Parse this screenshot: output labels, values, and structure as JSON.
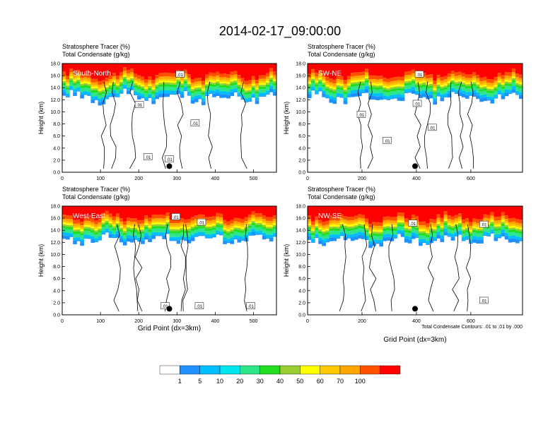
{
  "title": "2014-02-17_09:00:00",
  "footer_note": "Total Condensate Contours: .01 to .01 by .000",
  "colorbar": {
    "colors": [
      "#ffffff",
      "#1e90ff",
      "#00bfff",
      "#00e5ee",
      "#2ee68a",
      "#22dd22",
      "#9acd32",
      "#ffff00",
      "#ffc800",
      "#ffa500",
      "#ff5000",
      "#ff0000"
    ],
    "labels": [
      "1",
      "5",
      "10",
      "20",
      "30",
      "40",
      "50",
      "60",
      "70",
      "100"
    ]
  },
  "chart_data": [
    {
      "type": "heatmap",
      "label": "South-North",
      "subtitle_left": "Stratosphere Tracer",
      "subtitle_left_unit": "(%)",
      "subtitle_left2": "Total Condensate",
      "subtitle_left2_unit": "(g/kg)",
      "xlabel": "",
      "ylabel": "Height (km)",
      "xlim": [
        0,
        560
      ],
      "ylim": [
        0,
        18
      ],
      "xticks": [
        "0",
        "100",
        "200",
        "300",
        "400",
        "500"
      ],
      "yticks": [
        "0.0",
        "2.0",
        "4.0",
        "6.0",
        "8.0",
        "10.0",
        "12.0",
        "14.0",
        "16.0",
        "18.0"
      ],
      "contour_labels": [
        ".01",
        ".01",
        ".01",
        ".01",
        ".01"
      ],
      "marker_x": 280
    },
    {
      "type": "heatmap",
      "label": "SW-NE",
      "subtitle_left": "Stratosphere Tracer",
      "subtitle_left_unit": "(%)",
      "subtitle_left2": "Total Condensate",
      "subtitle_left2_unit": "(g/kg)",
      "xlabel": "",
      "ylabel": "Height (km)",
      "xlim": [
        0,
        790
      ],
      "ylim": [
        0,
        18
      ],
      "xticks": [
        "0",
        "200",
        "400",
        "600"
      ],
      "yticks": [
        "0.0",
        "2.0",
        "4.0",
        "6.0",
        "8.0",
        "10.0",
        "12.0",
        "14.0",
        "16.0",
        "18.0"
      ],
      "contour_labels": [
        ".01",
        ".01",
        ".01",
        ".01",
        ".01"
      ],
      "marker_x": 395
    },
    {
      "type": "heatmap",
      "label": "West-East",
      "subtitle_left": "Stratosphere Tracer",
      "subtitle_left_unit": "(%)",
      "subtitle_left2": "Total Condensate",
      "subtitle_left2_unit": "(g/kg)",
      "xlabel": "Grid Point (dx=3km)",
      "ylabel": "Height (km)",
      "xlim": [
        0,
        560
      ],
      "ylim": [
        0,
        18
      ],
      "xticks": [
        "0",
        "100",
        "200",
        "300",
        "400",
        "500"
      ],
      "yticks": [
        "0.0",
        "2.0",
        "4.0",
        "6.0",
        "8.0",
        "10.0",
        "12.0",
        "14.0",
        "16.0",
        "18.0"
      ],
      "contour_labels": [
        ".01",
        ".01",
        ".01",
        ".01",
        ".01"
      ],
      "marker_x": 280
    },
    {
      "type": "heatmap",
      "label": "NW-SE",
      "subtitle_left": "Stratosphere Tracer",
      "subtitle_left_unit": "(%)",
      "subtitle_left2": "Total Condensate",
      "subtitle_left2_unit": "(g/kg)",
      "xlabel": "Grid Point (dx=3km)",
      "ylabel": "Height (km)",
      "xlim": [
        0,
        790
      ],
      "ylim": [
        0,
        18
      ],
      "xticks": [
        "0",
        "200",
        "400",
        "600"
      ],
      "yticks": [
        "0.0",
        "2.0",
        "4.0",
        "6.0",
        "8.0",
        "10.0",
        "12.0",
        "14.0",
        "16.0",
        "18.0"
      ],
      "contour_labels": [
        ".01",
        ".01",
        ".01"
      ],
      "marker_x": 395
    }
  ]
}
